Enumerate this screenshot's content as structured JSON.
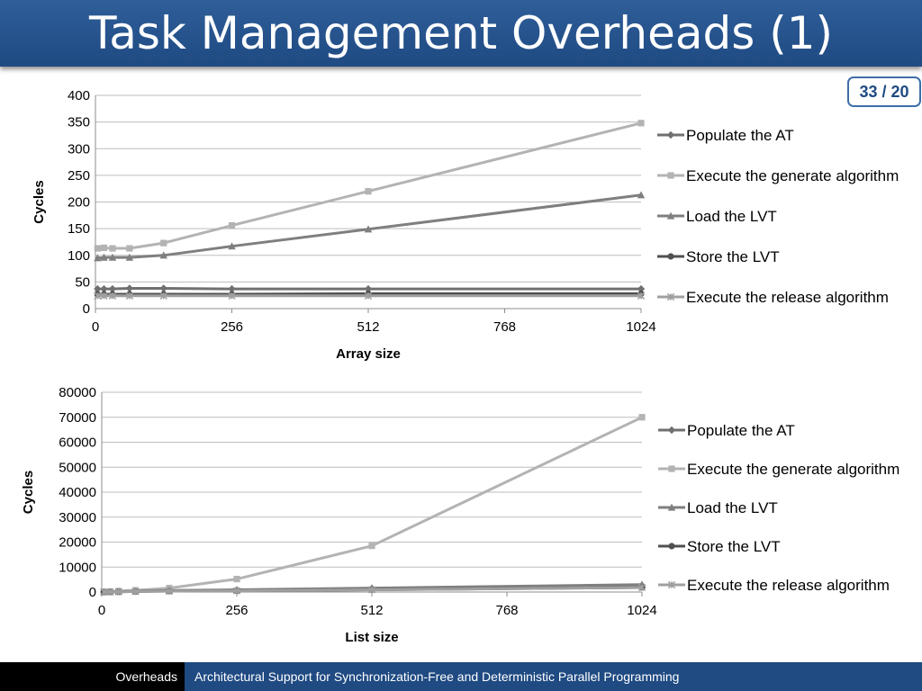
{
  "slide": {
    "title": "Task Management Overheads (1)",
    "page_indicator": "33 / 20"
  },
  "footer": {
    "section": "Overheads",
    "presentation_title": "Architectural Support for Synchronization-Free and Deterministic Parallel Programming"
  },
  "chart_data": [
    {
      "type": "line",
      "xlabel": "Array size",
      "ylabel": "Cycles",
      "xlim": [
        0,
        1024
      ],
      "ylim": [
        0,
        400
      ],
      "xticks": [
        0,
        256,
        512,
        768,
        1024
      ],
      "yticks": [
        0,
        50,
        100,
        150,
        200,
        250,
        300,
        350,
        400
      ],
      "grid": "horizontal",
      "legend_position": "right",
      "x": [
        4,
        16,
        32,
        64,
        128,
        256,
        512,
        1024
      ],
      "series": [
        {
          "name": "Populate the AT",
          "marker": "diamond",
          "color": "#707070",
          "values": [
            37,
            37,
            37,
            38,
            38,
            37,
            37,
            37
          ]
        },
        {
          "name": "Execute the generate algorithm",
          "marker": "square",
          "color": "#b3b3b3",
          "values": [
            113,
            114,
            113,
            113,
            123,
            156,
            220,
            348
          ]
        },
        {
          "name": "Load the LVT",
          "marker": "triangle",
          "color": "#7f7f7f",
          "values": [
            95,
            96,
            96,
            96,
            100,
            117,
            149,
            213
          ]
        },
        {
          "name": "Store the LVT",
          "marker": "circle",
          "color": "#505050",
          "values": [
            27,
            27,
            27,
            27,
            27,
            27,
            28,
            28
          ]
        },
        {
          "name": "Execute the release algorithm",
          "marker": "star",
          "color": "#a0a0a0",
          "values": [
            24,
            24,
            24,
            24,
            24,
            24,
            24,
            24
          ]
        }
      ]
    },
    {
      "type": "line",
      "xlabel": "List size",
      "ylabel": "Cycles",
      "xlim": [
        0,
        1024
      ],
      "ylim": [
        0,
        80000
      ],
      "xticks": [
        0,
        256,
        512,
        768,
        1024
      ],
      "yticks": [
        0,
        10000,
        20000,
        30000,
        40000,
        50000,
        60000,
        70000,
        80000
      ],
      "grid": "horizontal",
      "legend_position": "right",
      "x": [
        4,
        16,
        32,
        64,
        128,
        256,
        512,
        1024
      ],
      "series": [
        {
          "name": "Populate the AT",
          "marker": "diamond",
          "color": "#707070",
          "values": [
            20,
            70,
            130,
            260,
            500,
            800,
            1400,
            2600
          ]
        },
        {
          "name": "Execute the generate algorithm",
          "marker": "square",
          "color": "#b3b3b3",
          "values": [
            50,
            150,
            400,
            700,
            1600,
            5200,
            18500,
            70000
          ]
        },
        {
          "name": "Load the LVT",
          "marker": "triangle",
          "color": "#7f7f7f",
          "values": [
            30,
            100,
            180,
            350,
            650,
            900,
            1600,
            3000
          ]
        },
        {
          "name": "Store the LVT",
          "marker": "circle",
          "color": "#505050",
          "values": [
            15,
            50,
            100,
            200,
            350,
            500,
            900,
            1800
          ]
        },
        {
          "name": "Execute the release algorithm",
          "marker": "star",
          "color": "#a0a0a0",
          "values": [
            15,
            50,
            100,
            200,
            350,
            500,
            900,
            1800
          ]
        }
      ]
    }
  ]
}
